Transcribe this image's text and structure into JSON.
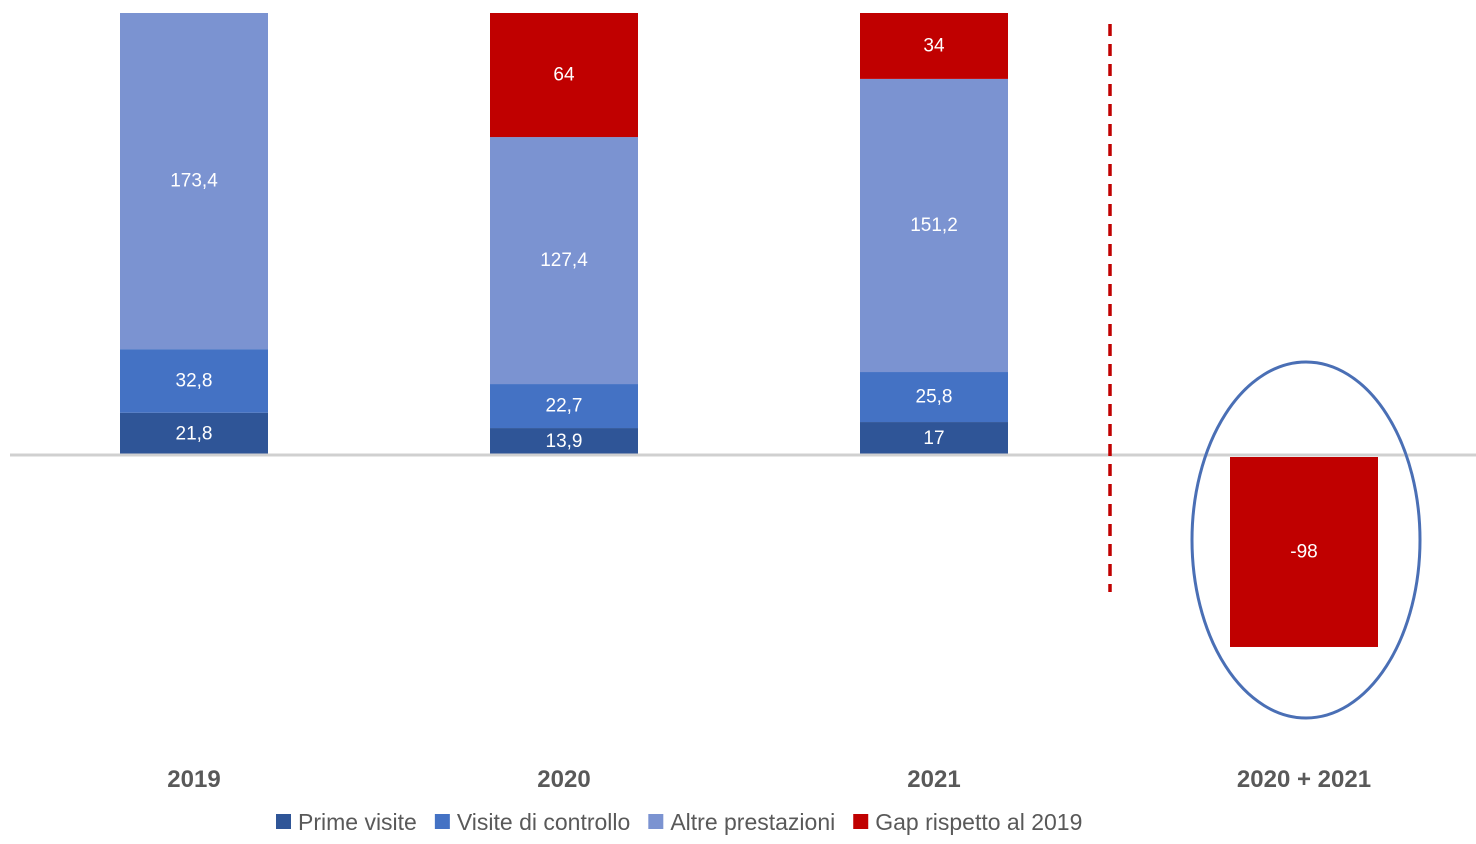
{
  "chart_data": {
    "type": "bar",
    "stacked": true,
    "categories": [
      "2019",
      "2020",
      "2021",
      "2020 + 2021"
    ],
    "series": [
      {
        "name": "Prime visite",
        "color": "#2f5597",
        "values": [
          21.8,
          13.9,
          17,
          null
        ],
        "labels": [
          "21,8",
          "13,9",
          "17",
          ""
        ]
      },
      {
        "name": "Visite di controllo",
        "color": "#4472c4",
        "values": [
          32.8,
          22.7,
          25.8,
          null
        ],
        "labels": [
          "32,8",
          "22,7",
          "25,8",
          ""
        ]
      },
      {
        "name": "Altre prestazioni",
        "color": "#7b93d1",
        "values": [
          173.4,
          127.4,
          151.2,
          null
        ],
        "labels": [
          "173,4",
          "127,4",
          "151,2",
          ""
        ]
      },
      {
        "name": "Gap rispetto al 2019",
        "color": "#c00000",
        "values": [
          null,
          64,
          34,
          -98
        ],
        "labels": [
          "",
          "64",
          "34",
          "-98"
        ]
      }
    ],
    "ylim": [
      -98,
      228
    ],
    "grid": false,
    "legend_position": "bottom",
    "annotations": {
      "divider": {
        "type": "dashed-vertical-line",
        "color": "#c00000"
      },
      "highlight": {
        "type": "ellipse-outline",
        "target": "2020 + 2021",
        "color": "#4a6fb5"
      }
    }
  }
}
